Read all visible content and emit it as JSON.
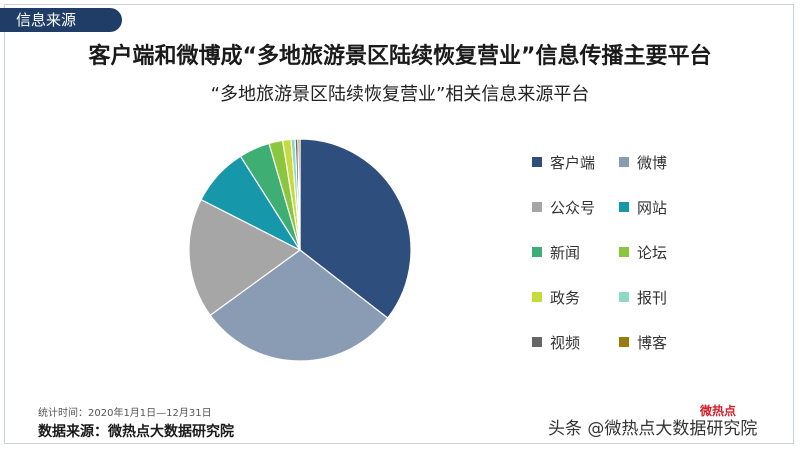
{
  "tag": "信息来源",
  "main_title": "客户端和微博成“多地旅游景区陆续恢复营业”信息传播主要平台",
  "stat_note": "统计时间：2020年1月1日—12月31日",
  "source": "数据来源：微热点大数据研究院",
  "logo": "微热点",
  "watermark": "头条 @微热点大数据研究院",
  "chart_data": {
    "type": "pie",
    "title": "“多地旅游景区陆续恢复营业”相关信息来源平台",
    "legend_position": "right",
    "series": [
      {
        "name": "客户端",
        "value": 35.5,
        "color": "#2e4f7e"
      },
      {
        "name": "微博",
        "value": 29.5,
        "color": "#8a9cb4"
      },
      {
        "name": "公众号",
        "value": 17.5,
        "color": "#a6a6a6"
      },
      {
        "name": "网站",
        "value": 8.5,
        "color": "#1798aa"
      },
      {
        "name": "新闻",
        "value": 4.5,
        "color": "#3fae73"
      },
      {
        "name": "论坛",
        "value": 2.0,
        "color": "#8cc63e"
      },
      {
        "name": "政务",
        "value": 1.2,
        "color": "#c5dc3c"
      },
      {
        "name": "报刊",
        "value": 0.6,
        "color": "#8ed8c4"
      },
      {
        "name": "视频",
        "value": 0.4,
        "color": "#666666"
      },
      {
        "name": "博客",
        "value": 0.3,
        "color": "#9a7a12"
      }
    ]
  }
}
